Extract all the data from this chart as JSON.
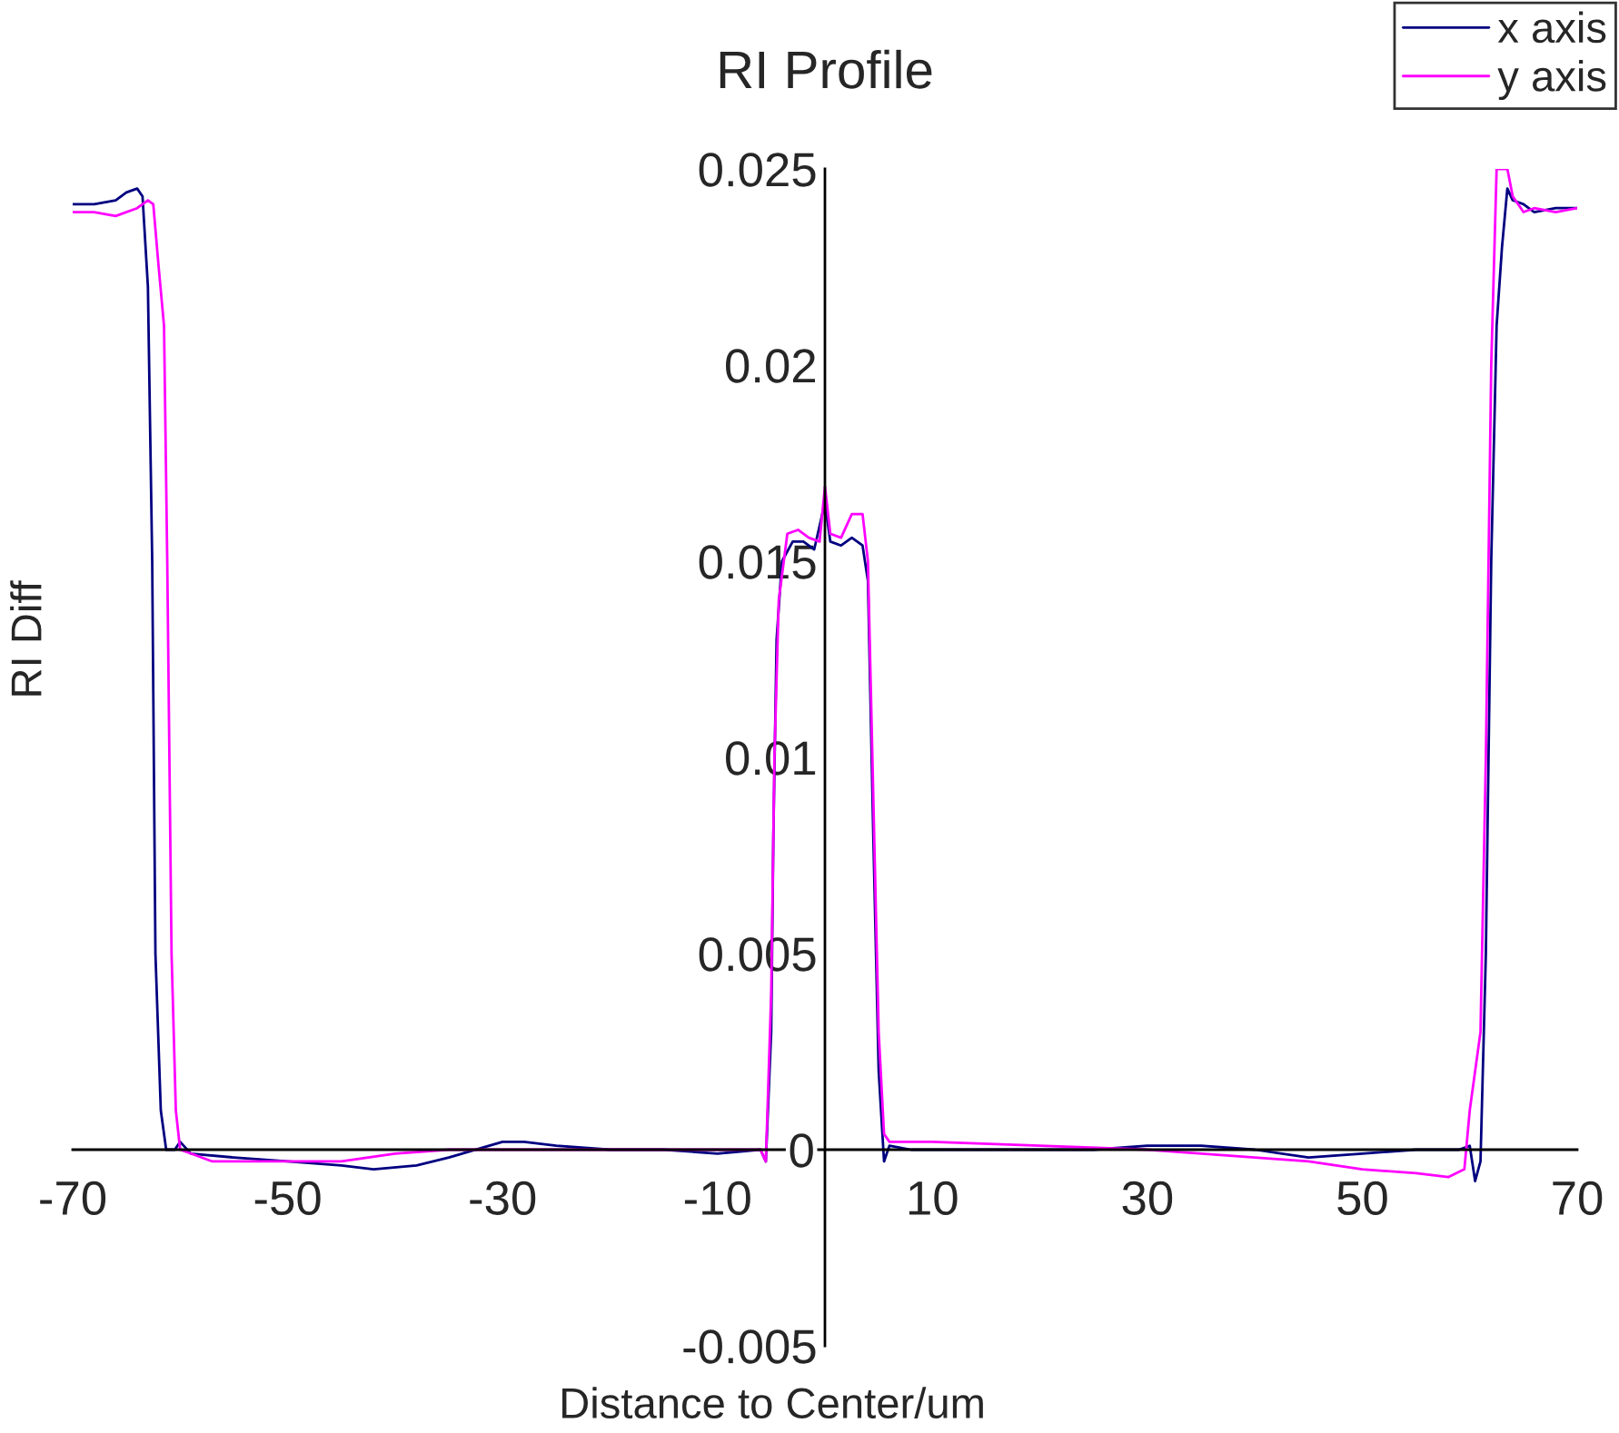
{
  "chart_data": {
    "type": "line",
    "title": "RI Profile",
    "xlabel": "Distance to Center/um",
    "ylabel": "RI Diff",
    "xlim": [
      -70,
      70
    ],
    "xticks": [
      -70,
      -50,
      -30,
      -10,
      10,
      30,
      50,
      70
    ],
    "ylim": [
      -0.005,
      0.025
    ],
    "yticks": [
      -0.005,
      0,
      0.005,
      0.01,
      0.015,
      0.02,
      0.025
    ],
    "grid": false,
    "legend": "top right",
    "marker": "none",
    "line_style": "solid",
    "series": [
      {
        "name": "x axis",
        "color": "#000080",
        "x": [
          -70,
          -68,
          -66,
          -65,
          -64,
          -63.5,
          -63,
          -62.6,
          -62.3,
          -61.8,
          -61.3,
          -60.5,
          -60,
          -59,
          -55,
          -50,
          -45,
          -42,
          -38,
          -35,
          -30,
          -28,
          -25,
          -20,
          -15,
          -10,
          -6,
          -5.5,
          -5,
          -4.8,
          -4.5,
          -4,
          -3,
          -2,
          -1,
          0,
          0.5,
          1.5,
          2.5,
          3.5,
          4,
          4.5,
          5,
          5.5,
          6,
          8,
          15,
          20,
          25,
          30,
          35,
          40,
          45,
          50,
          55,
          59,
          60,
          60.5,
          61,
          61.5,
          62,
          62.5,
          63,
          63.5,
          64,
          65,
          66,
          68,
          70
        ],
        "values": [
          0.0241,
          0.0241,
          0.0242,
          0.0244,
          0.0245,
          0.0243,
          0.022,
          0.015,
          0.005,
          0.001,
          0.0,
          0.0,
          0.0002,
          -0.0001,
          -0.0002,
          -0.0003,
          -0.0004,
          -0.0005,
          -0.0004,
          -0.0002,
          0.0002,
          0.0002,
          0.0001,
          0.0,
          0.0,
          -0.0001,
          0.0,
          -0.0003,
          0.003,
          0.008,
          0.013,
          0.015,
          0.0155,
          0.0155,
          0.0153,
          0.0165,
          0.0155,
          0.0154,
          0.0156,
          0.0154,
          0.0145,
          0.008,
          0.002,
          -0.0003,
          0.0001,
          0.0,
          0.0,
          0.0,
          0.0,
          0.0001,
          0.0001,
          0.0,
          -0.0002,
          -0.0001,
          0.0,
          0.0,
          0.0001,
          -0.0008,
          -0.0003,
          0.005,
          0.015,
          0.021,
          0.023,
          0.0245,
          0.0242,
          0.0241,
          0.0239,
          0.024,
          0.024
        ]
      },
      {
        "name": "y axis",
        "color": "#ff00ff",
        "x": [
          -70,
          -68,
          -66,
          -64,
          -63,
          -62.5,
          -62,
          -61.5,
          -61.2,
          -60.8,
          -60.4,
          -60,
          -59,
          -57,
          -50,
          -45,
          -40,
          -35,
          -30,
          -20,
          -10,
          -6,
          -5.5,
          -5,
          -4.7,
          -4.3,
          -3.5,
          -2.5,
          -1.5,
          -0.5,
          0,
          0.5,
          1.5,
          2.5,
          3.5,
          4,
          4.5,
          5,
          5.5,
          6,
          10,
          20,
          30,
          40,
          45,
          50,
          55,
          58,
          59.5,
          60,
          61,
          61.5,
          62,
          62.5,
          63.5,
          64,
          65,
          66,
          68,
          70
        ],
        "values": [
          0.0239,
          0.0239,
          0.0238,
          0.024,
          0.0242,
          0.0241,
          0.0225,
          0.021,
          0.015,
          0.005,
          0.001,
          0.0,
          -0.0001,
          -0.0003,
          -0.0003,
          -0.0003,
          -0.0001,
          0.0,
          0.0,
          0.0,
          0.0,
          0.0,
          -0.0003,
          0.004,
          0.01,
          0.014,
          0.0157,
          0.0158,
          0.0156,
          0.0155,
          0.0169,
          0.0157,
          0.0156,
          0.0162,
          0.0162,
          0.015,
          0.009,
          0.003,
          0.0004,
          0.0002,
          0.0002,
          0.0001,
          0.0,
          -0.0002,
          -0.0003,
          -0.0005,
          -0.0006,
          -0.0007,
          -0.0005,
          0.001,
          0.003,
          0.01,
          0.02,
          0.025,
          0.025,
          0.0243,
          0.0239,
          0.024,
          0.0239,
          0.024
        ]
      }
    ]
  }
}
